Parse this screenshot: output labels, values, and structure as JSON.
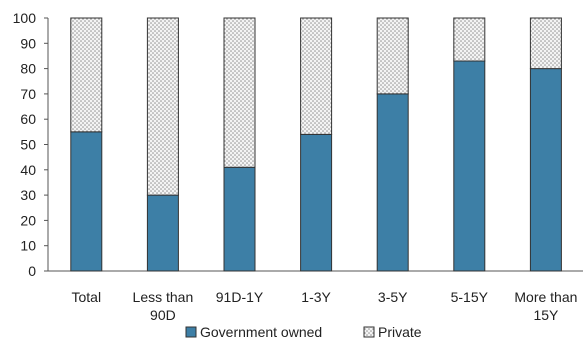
{
  "chart_data": {
    "type": "bar",
    "stacked": true,
    "title": "",
    "xlabel": "",
    "ylabel": "",
    "ylim": [
      0,
      100
    ],
    "yticks": [
      0,
      10,
      20,
      30,
      40,
      50,
      60,
      70,
      80,
      90,
      100
    ],
    "categories": [
      [
        "Total"
      ],
      [
        "Less than",
        "90D"
      ],
      [
        "91D-1Y"
      ],
      [
        "1-3Y"
      ],
      [
        "3-5Y"
      ],
      [
        "5-15Y"
      ],
      [
        "More than",
        "15Y"
      ]
    ],
    "series": [
      {
        "name": "Government owned",
        "values": [
          55,
          30,
          41,
          54,
          70,
          83,
          80
        ],
        "color": "#3d7fa6",
        "pattern": "solid"
      },
      {
        "name": "Private",
        "values": [
          45,
          70,
          59,
          46,
          30,
          17,
          20
        ],
        "color": "#bdbdbd",
        "pattern": "dotted"
      }
    ],
    "grid": false,
    "legend_position": "bottom"
  }
}
